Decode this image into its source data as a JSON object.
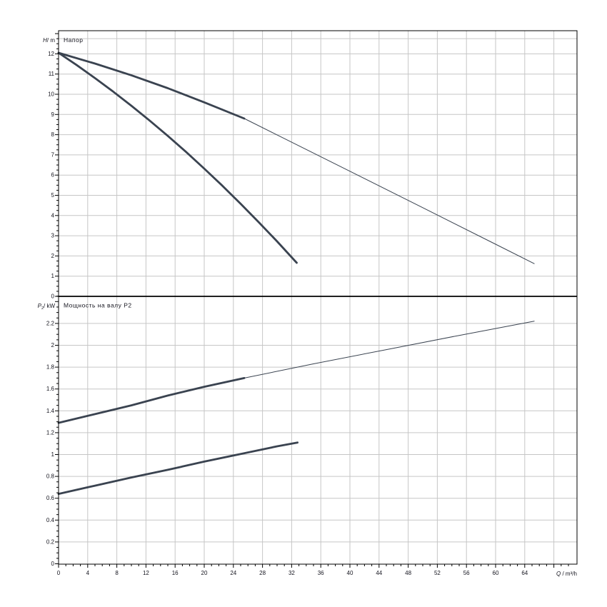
{
  "colors": {
    "curve": "#3a4350",
    "grid": "#c6c6c6",
    "axis": "#000000",
    "text": "#14141e",
    "background": "#ffffff"
  },
  "x_axis": {
    "label_italic": "Q",
    "label_rest": " / m³/h",
    "min": 0,
    "max": 71.2,
    "major_step": 4,
    "minor_step": 1,
    "major_tick_max": 68,
    "minor_tick_max": 70,
    "tick_labels": [
      "0",
      "4",
      "8",
      "12",
      "16",
      "20",
      "24",
      "28",
      "32",
      "36",
      "40",
      "44",
      "48",
      "52",
      "56",
      "60",
      "64"
    ]
  },
  "chart_data": [
    {
      "type": "line",
      "panel": "head",
      "title": "Напор",
      "y_axis": {
        "label_italic": "H",
        "label_sub": "",
        "label_rest": "/ m",
        "min": 0,
        "max": 13.15,
        "major_step": 1,
        "minor_step": 0.25,
        "edge_line_value": 12.75,
        "tick_labels": [
          "0",
          "1",
          "2",
          "3",
          "4",
          "5",
          "6",
          "7",
          "8",
          "9",
          "10",
          "11",
          "12"
        ]
      },
      "series": [
        {
          "name": "head-curve-max-speed",
          "style": "thick",
          "points": [
            [
              0,
              12.05
            ],
            [
              5,
              11.52
            ],
            [
              10,
              10.94
            ],
            [
              15,
              10.3
            ],
            [
              20,
              9.6
            ],
            [
              25.5,
              8.8
            ]
          ]
        },
        {
          "name": "head-curve-max-speed-extension",
          "style": "thin",
          "points": [
            [
              25.5,
              8.8
            ],
            [
              30,
              7.99
            ],
            [
              40,
              6.19
            ],
            [
              50,
              4.39
            ],
            [
              60,
              2.58
            ],
            [
              65.3,
              1.62
            ]
          ]
        },
        {
          "name": "head-curve-min-speed",
          "style": "thick",
          "points": [
            [
              0,
              12.05
            ],
            [
              2.5,
              11.44
            ],
            [
              5,
              10.8
            ],
            [
              7.5,
              10.13
            ],
            [
              10,
              9.43
            ],
            [
              12.5,
              8.7
            ],
            [
              15,
              7.94
            ],
            [
              17.5,
              7.15
            ],
            [
              20,
              6.32
            ],
            [
              22.5,
              5.47
            ],
            [
              25,
              4.58
            ],
            [
              27.5,
              3.66
            ],
            [
              30,
              2.72
            ],
            [
              32.7,
              1.66
            ]
          ]
        }
      ]
    },
    {
      "type": "line",
      "panel": "power",
      "title": "Мощность на валу P2",
      "y_axis": {
        "label_italic": "P",
        "label_sub": "2",
        "label_rest": "/ kW",
        "min": 0,
        "max": 2.45,
        "major_step": 0.2,
        "minor_step": 0.05,
        "edge_line_value": null,
        "tick_labels": [
          "0",
          "0.2",
          "0.4",
          "0.6",
          "0.8",
          "1",
          "1.2",
          "1.4",
          "1.6",
          "1.8",
          "2",
          "2.2"
        ]
      },
      "series": [
        {
          "name": "power-curve-max-speed",
          "style": "thick",
          "points": [
            [
              0,
              1.29
            ],
            [
              5,
              1.37
            ],
            [
              10,
              1.45
            ],
            [
              15,
              1.54
            ],
            [
              20,
              1.62
            ],
            [
              25.5,
              1.7
            ]
          ]
        },
        {
          "name": "power-curve-max-speed-extension",
          "style": "thin",
          "points": [
            [
              25.5,
              1.7
            ],
            [
              35,
              1.83
            ],
            [
              45,
              1.96
            ],
            [
              55,
              2.09
            ],
            [
              65.3,
              2.22
            ]
          ]
        },
        {
          "name": "power-curve-min-speed",
          "style": "thick",
          "points": [
            [
              0,
              0.64
            ],
            [
              5,
              0.715
            ],
            [
              10,
              0.79
            ],
            [
              15,
              0.86
            ],
            [
              20,
              0.935
            ],
            [
              25,
              1.005
            ],
            [
              30,
              1.075
            ],
            [
              32.8,
              1.11
            ]
          ]
        }
      ]
    }
  ]
}
